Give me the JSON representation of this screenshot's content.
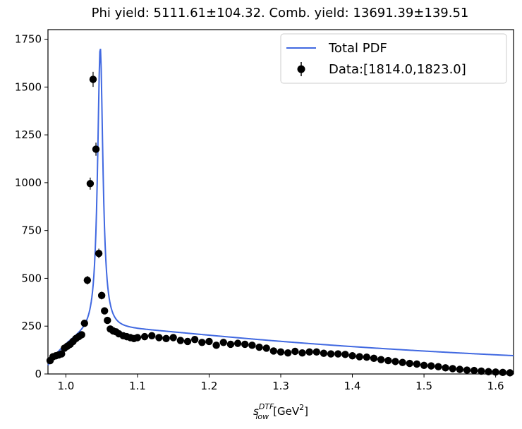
{
  "chart_data": {
    "type": "scatter",
    "title": "Phi yield: 5111.61±104.32. Comb. yield: 13691.39±139.51",
    "xlabel": "s_low^DTF [GeV^2]",
    "xlabel_parts": {
      "base": "s",
      "sup": "DTF",
      "sub": "low",
      "unit": "[GeV",
      "unit_sup": "2",
      "unit_close": "]"
    },
    "ylabel": "",
    "xlim": [
      0.975,
      1.625
    ],
    "ylim": [
      0,
      1800
    ],
    "xticks": [
      1.0,
      1.1,
      1.2,
      1.3,
      1.4,
      1.5,
      1.6
    ],
    "xtick_labels": [
      "1.0",
      "1.1",
      "1.2",
      "1.3",
      "1.4",
      "1.5",
      "1.6"
    ],
    "yticks": [
      0,
      250,
      500,
      750,
      1000,
      1250,
      1500,
      1750
    ],
    "ytick_labels": [
      "0",
      "250",
      "500",
      "750",
      "1000",
      "1250",
      "1500",
      "1750"
    ],
    "grid": false,
    "legend_position": "top-right",
    "series": [
      {
        "name": "Total PDF",
        "kind": "line",
        "color": "#4169e1",
        "model": {
          "bg_start": 40,
          "bg_end": 45,
          "bg_amp": 190,
          "bg_peak": 260,
          "bg_slope": 270,
          "peak_center": 1.048,
          "peak_height": 1490,
          "peak_width": 0.0045
        }
      },
      {
        "name": "Data:[1814.0,1823.0]",
        "kind": "errorbar",
        "color": "#000000",
        "x": [
          0.978,
          0.982,
          0.986,
          0.99,
          0.994,
          0.998,
          1.002,
          1.006,
          1.01,
          1.014,
          1.018,
          1.022,
          1.026,
          1.03,
          1.034,
          1.038,
          1.042,
          1.046,
          1.05,
          1.054,
          1.058,
          1.062,
          1.066,
          1.07,
          1.074,
          1.08,
          1.085,
          1.09,
          1.095,
          1.1,
          1.11,
          1.12,
          1.13,
          1.14,
          1.15,
          1.16,
          1.17,
          1.18,
          1.19,
          1.2,
          1.21,
          1.22,
          1.23,
          1.24,
          1.25,
          1.26,
          1.27,
          1.28,
          1.29,
          1.3,
          1.31,
          1.32,
          1.33,
          1.34,
          1.35,
          1.36,
          1.37,
          1.38,
          1.39,
          1.4,
          1.41,
          1.42,
          1.43,
          1.44,
          1.45,
          1.46,
          1.47,
          1.48,
          1.49,
          1.5,
          1.51,
          1.52,
          1.53,
          1.54,
          1.55,
          1.56,
          1.57,
          1.58,
          1.59,
          1.6,
          1.61,
          1.62
        ],
        "y": [
          70,
          90,
          95,
          100,
          105,
          135,
          145,
          155,
          170,
          185,
          195,
          205,
          265,
          490,
          995,
          1540,
          1175,
          630,
          410,
          330,
          280,
          235,
          225,
          220,
          210,
          200,
          195,
          190,
          185,
          190,
          195,
          200,
          190,
          185,
          190,
          175,
          170,
          180,
          165,
          170,
          150,
          165,
          155,
          160,
          155,
          150,
          140,
          135,
          120,
          115,
          110,
          118,
          110,
          115,
          115,
          108,
          105,
          105,
          102,
          95,
          90,
          88,
          82,
          75,
          70,
          65,
          60,
          55,
          52,
          45,
          42,
          38,
          32,
          28,
          24,
          20,
          18,
          15,
          12,
          10,
          8,
          6
        ]
      }
    ]
  }
}
